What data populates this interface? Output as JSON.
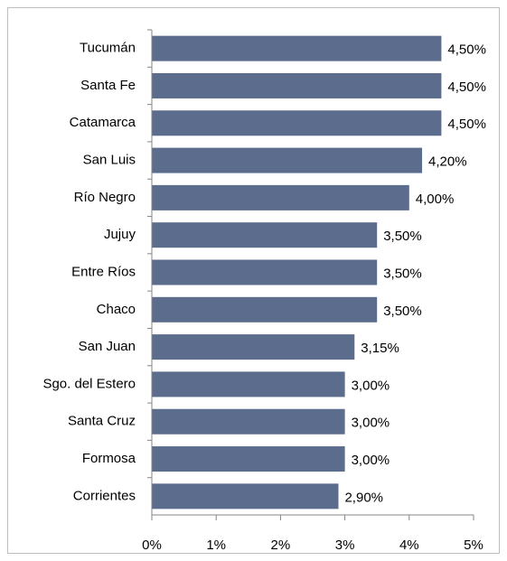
{
  "chart_data": {
    "type": "bar",
    "orientation": "horizontal",
    "categories": [
      "Tucumán",
      "Santa Fe",
      "Catamarca",
      "San Luis",
      "Río Negro",
      "Jujuy",
      "Entre Ríos",
      "Chaco",
      "San Juan",
      "Sgo. del Estero",
      "Santa Cruz",
      "Formosa",
      "Corrientes"
    ],
    "values": [
      4.5,
      4.5,
      4.5,
      4.2,
      4.0,
      3.5,
      3.5,
      3.5,
      3.15,
      3.0,
      3.0,
      3.0,
      2.9
    ],
    "value_labels": [
      "4,50%",
      "4,50%",
      "4,50%",
      "4,20%",
      "4,00%",
      "3,50%",
      "3,50%",
      "3,50%",
      "3,15%",
      "3,00%",
      "3,00%",
      "3,00%",
      "2,90%"
    ],
    "color": "#5b6c8d",
    "xlim": [
      0,
      5
    ],
    "xticks": [
      {
        "value": 0,
        "label": "0%"
      },
      {
        "value": 1,
        "label": "1%"
      },
      {
        "value": 2,
        "label": "2%"
      },
      {
        "value": 3,
        "label": "3%"
      },
      {
        "value": 4,
        "label": "4%"
      },
      {
        "value": 5,
        "label": "5%"
      }
    ],
    "grid": false
  }
}
